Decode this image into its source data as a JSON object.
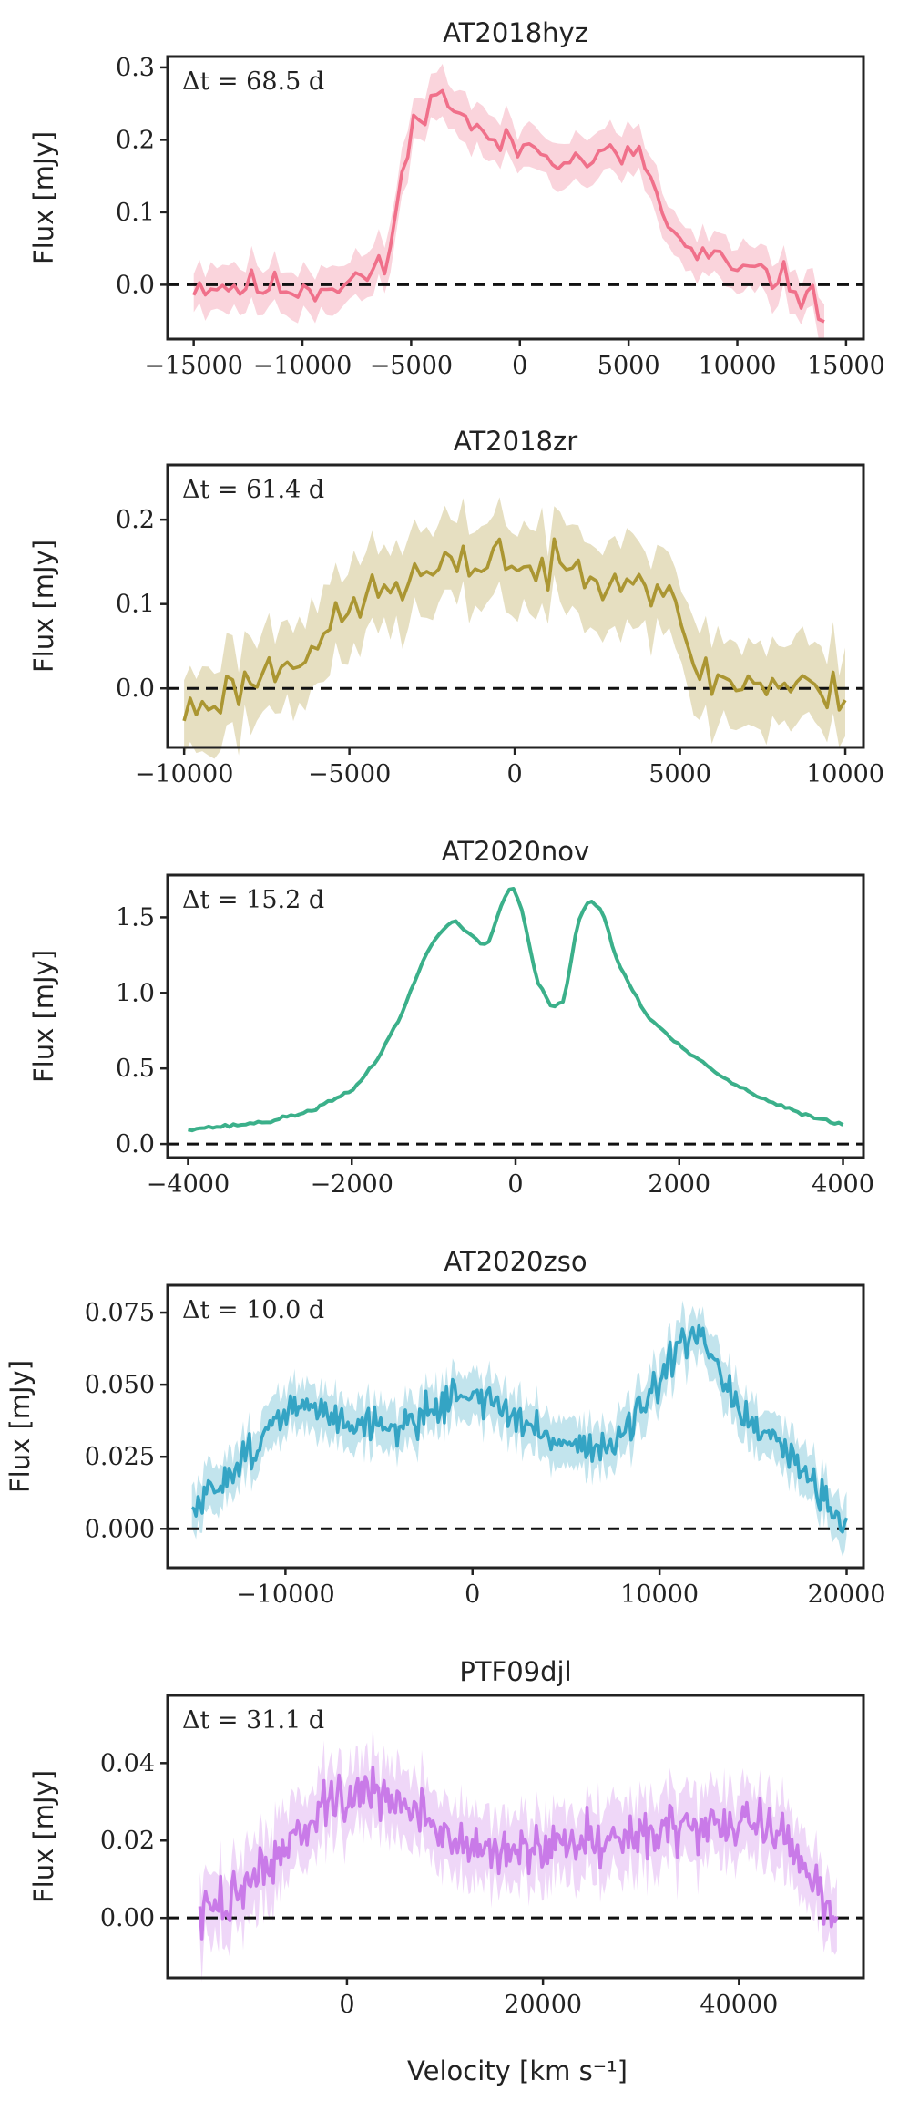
{
  "figure": {
    "xlabel": "Velocity [km s⁻¹]"
  },
  "chart_data": [
    {
      "type": "line",
      "title": "AT2018hyz",
      "annotation": "Δt = 68.5 d",
      "color": "#f0708a",
      "xlabel": "Velocity [km s⁻¹]",
      "ylabel": "Flux [mJy]",
      "xlim": [
        -16200,
        15800
      ],
      "ylim": [
        -0.075,
        0.315
      ],
      "xticks": [
        -15000,
        -10000,
        -5000,
        0,
        5000,
        10000,
        15000
      ],
      "xtick_labels": [
        "−15000",
        "−10000",
        "−5000",
        "0",
        "5000",
        "10000",
        "15000"
      ],
      "yticks": [
        0.0,
        0.1,
        0.2,
        0.3
      ],
      "ytick_labels": [
        "0.0",
        "0.1",
        "0.2",
        "0.3"
      ],
      "x_range": [
        -15000,
        14000
      ],
      "n_points": 110,
      "noise": 0.017,
      "band": 0.03,
      "knots": [
        [
          -15000,
          0.0
        ],
        [
          -9500,
          -0.005
        ],
        [
          -8000,
          0.005
        ],
        [
          -6200,
          0.02
        ],
        [
          -5600,
          0.12
        ],
        [
          -4800,
          0.23
        ],
        [
          -4200,
          0.26
        ],
        [
          -3000,
          0.25
        ],
        [
          -2000,
          0.21
        ],
        [
          -500,
          0.19
        ],
        [
          1000,
          0.19
        ],
        [
          2500,
          0.17
        ],
        [
          4500,
          0.18
        ],
        [
          5800,
          0.17
        ],
        [
          6500,
          0.1
        ],
        [
          7500,
          0.05
        ],
        [
          10000,
          0.02
        ],
        [
          12000,
          0.01
        ],
        [
          14000,
          -0.035
        ]
      ],
      "seed": 11
    },
    {
      "type": "line",
      "title": "AT2018zr",
      "annotation": "Δt = 61.4 d",
      "color": "#ab9632",
      "xlabel": "Velocity [km s⁻¹]",
      "ylabel": "Flux [mJy]",
      "xlim": [
        -10500,
        10550
      ],
      "ylim": [
        -0.07,
        0.265
      ],
      "xticks": [
        -10000,
        -5000,
        0,
        5000,
        10000
      ],
      "xtick_labels": [
        "−10000",
        "−5000",
        "0",
        "5000",
        "10000"
      ],
      "yticks": [
        0.0,
        0.1,
        0.2
      ],
      "ytick_labels": [
        "0.0",
        "0.1",
        "0.2"
      ],
      "x_range": [
        -10000,
        10000
      ],
      "n_points": 110,
      "noise": 0.02,
      "band": 0.05,
      "knots": [
        [
          -10000,
          -0.03
        ],
        [
          -8500,
          0.0
        ],
        [
          -7000,
          0.03
        ],
        [
          -5500,
          0.07
        ],
        [
          -4500,
          0.11
        ],
        [
          -3000,
          0.13
        ],
        [
          -1000,
          0.15
        ],
        [
          -400,
          0.17
        ],
        [
          0,
          0.14
        ],
        [
          1500,
          0.14
        ],
        [
          3000,
          0.14
        ],
        [
          4500,
          0.12
        ],
        [
          5300,
          0.04
        ],
        [
          6000,
          0.01
        ],
        [
          8000,
          0.005
        ],
        [
          10000,
          -0.01
        ]
      ],
      "seed": 23
    },
    {
      "type": "line",
      "title": "AT2020nov",
      "annotation": "Δt = 15.2 d",
      "color": "#3bb08a",
      "xlabel": "Velocity [km s⁻¹]",
      "ylabel": "Flux [mJy]",
      "xlim": [
        -4250,
        4250
      ],
      "ylim": [
        -0.09,
        1.78
      ],
      "xticks": [
        -4000,
        -2000,
        0,
        2000,
        4000
      ],
      "xtick_labels": [
        "−4000",
        "−2000",
        "0",
        "2000",
        "4000"
      ],
      "yticks": [
        0.0,
        0.5,
        1.0,
        1.5
      ],
      "ytick_labels": [
        "0.0",
        "0.5",
        "1.0",
        "1.5"
      ],
      "x_range": [
        -4000,
        4000
      ],
      "n_points": 160,
      "noise": 0.008,
      "band": 0.0,
      "knots": [
        [
          -4000,
          0.1
        ],
        [
          -3500,
          0.12
        ],
        [
          -3000,
          0.15
        ],
        [
          -2500,
          0.22
        ],
        [
          -2000,
          0.35
        ],
        [
          -1700,
          0.55
        ],
        [
          -1400,
          0.85
        ],
        [
          -1100,
          1.25
        ],
        [
          -900,
          1.42
        ],
        [
          -750,
          1.48
        ],
        [
          -550,
          1.38
        ],
        [
          -350,
          1.3
        ],
        [
          -150,
          1.62
        ],
        [
          -40,
          1.71
        ],
        [
          80,
          1.55
        ],
        [
          250,
          1.1
        ],
        [
          450,
          0.9
        ],
        [
          600,
          0.95
        ],
        [
          750,
          1.45
        ],
        [
          900,
          1.62
        ],
        [
          1050,
          1.55
        ],
        [
          1250,
          1.2
        ],
        [
          1600,
          0.85
        ],
        [
          2000,
          0.65
        ],
        [
          2500,
          0.45
        ],
        [
          3000,
          0.3
        ],
        [
          3500,
          0.2
        ],
        [
          4000,
          0.13
        ]
      ],
      "seed": 37
    },
    {
      "type": "line",
      "title": "AT2020zso",
      "annotation": "Δt = 10.0 d",
      "color": "#34a4c4",
      "xlabel": "Velocity [km s⁻¹]",
      "ylabel": "Flux [mJy]",
      "xlim": [
        -16300,
        20900
      ],
      "ylim": [
        -0.0135,
        0.0845
      ],
      "xticks": [
        -10000,
        0,
        10000,
        20000
      ],
      "xtick_labels": [
        "−10000",
        "0",
        "10000",
        "20000"
      ],
      "yticks": [
        0.0,
        0.025,
        0.05,
        0.075
      ],
      "ytick_labels": [
        "0.000",
        "0.025",
        "0.050",
        "0.075"
      ],
      "x_range": [
        -15000,
        20000
      ],
      "n_points": 320,
      "noise": 0.0045,
      "band": 0.008,
      "knots": [
        [
          -15000,
          0.005
        ],
        [
          -13000,
          0.02
        ],
        [
          -11000,
          0.033
        ],
        [
          -9500,
          0.043
        ],
        [
          -8000,
          0.04
        ],
        [
          -6000,
          0.037
        ],
        [
          -4000,
          0.035
        ],
        [
          -2000,
          0.042
        ],
        [
          -500,
          0.048
        ],
        [
          1000,
          0.044
        ],
        [
          3000,
          0.035
        ],
        [
          5000,
          0.03
        ],
        [
          7500,
          0.028
        ],
        [
          9500,
          0.045
        ],
        [
          11000,
          0.062
        ],
        [
          12000,
          0.068
        ],
        [
          13000,
          0.055
        ],
        [
          15000,
          0.035
        ],
        [
          17500,
          0.022
        ],
        [
          20000,
          0.002
        ]
      ],
      "seed": 51
    },
    {
      "type": "line",
      "title": "PTF09djl",
      "annotation": "Δt = 31.1 d",
      "color": "#c97ae8",
      "xlabel": "Velocity [km s⁻¹]",
      "ylabel": "Flux [mJy]",
      "xlim": [
        -18300,
        52700
      ],
      "ylim": [
        -0.0155,
        0.0575
      ],
      "xticks": [
        0,
        20000,
        40000
      ],
      "xtick_labels": [
        "0",
        "20000",
        "40000"
      ],
      "yticks": [
        0.0,
        0.02,
        0.04
      ],
      "ytick_labels": [
        "0.00",
        "0.02",
        "0.04"
      ],
      "x_range": [
        -15000,
        50000
      ],
      "n_points": 340,
      "noise": 0.0048,
      "band": 0.009,
      "knots": [
        [
          -15000,
          0.0
        ],
        [
          -12000,
          0.005
        ],
        [
          -9000,
          0.012
        ],
        [
          -5000,
          0.022
        ],
        [
          -2000,
          0.028
        ],
        [
          2000,
          0.033
        ],
        [
          5000,
          0.03
        ],
        [
          10000,
          0.022
        ],
        [
          15000,
          0.016
        ],
        [
          20000,
          0.018
        ],
        [
          25000,
          0.021
        ],
        [
          30000,
          0.022
        ],
        [
          35000,
          0.024
        ],
        [
          40000,
          0.024
        ],
        [
          44000,
          0.023
        ],
        [
          47000,
          0.012
        ],
        [
          50000,
          0.0
        ]
      ],
      "seed": 73
    }
  ]
}
